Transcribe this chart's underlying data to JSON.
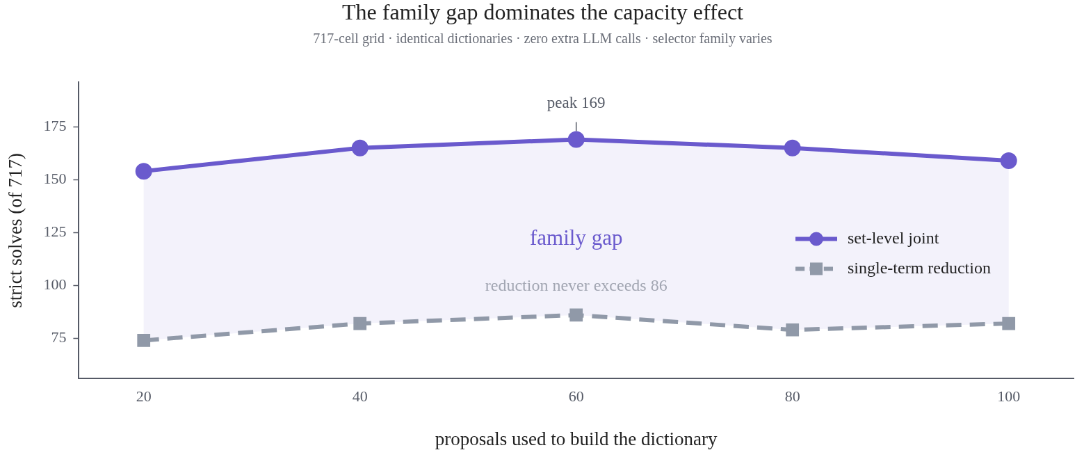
{
  "chart_data": {
    "type": "line",
    "title": "The family gap dominates the capacity effect",
    "subtitle": "717-cell grid · identical dictionaries · zero extra LLM calls · selector family varies",
    "xlabel": "proposals used to build the dictionary",
    "ylabel": "strict solves (of 717)",
    "x": [
      20,
      40,
      60,
      80,
      100
    ],
    "series": [
      {
        "name": "set-level joint",
        "color": "#6a5acd",
        "values": [
          154,
          165,
          169,
          165,
          159
        ],
        "lower": [
          74,
          82,
          86,
          79,
          82
        ],
        "upper": [
          154,
          165,
          169,
          165,
          159
        ],
        "marker": "circle",
        "line_style": "solid"
      },
      {
        "name": "single-term reduction",
        "color": "#9099a8",
        "values": [
          74,
          82,
          86,
          79,
          82
        ],
        "marker": "square",
        "line_style": "dashed"
      }
    ],
    "xlim": [
      14,
      106
    ],
    "ylim": [
      56,
      196
    ],
    "xticks": [
      20,
      40,
      60,
      80,
      100
    ],
    "yticks": [
      75,
      100,
      125,
      150,
      175
    ],
    "grid": false,
    "legend": "right",
    "annotations": [
      {
        "text": "peak 169",
        "x": 60,
        "y": 169
      },
      "family gap",
      "reduction never exceeds 86"
    ]
  }
}
